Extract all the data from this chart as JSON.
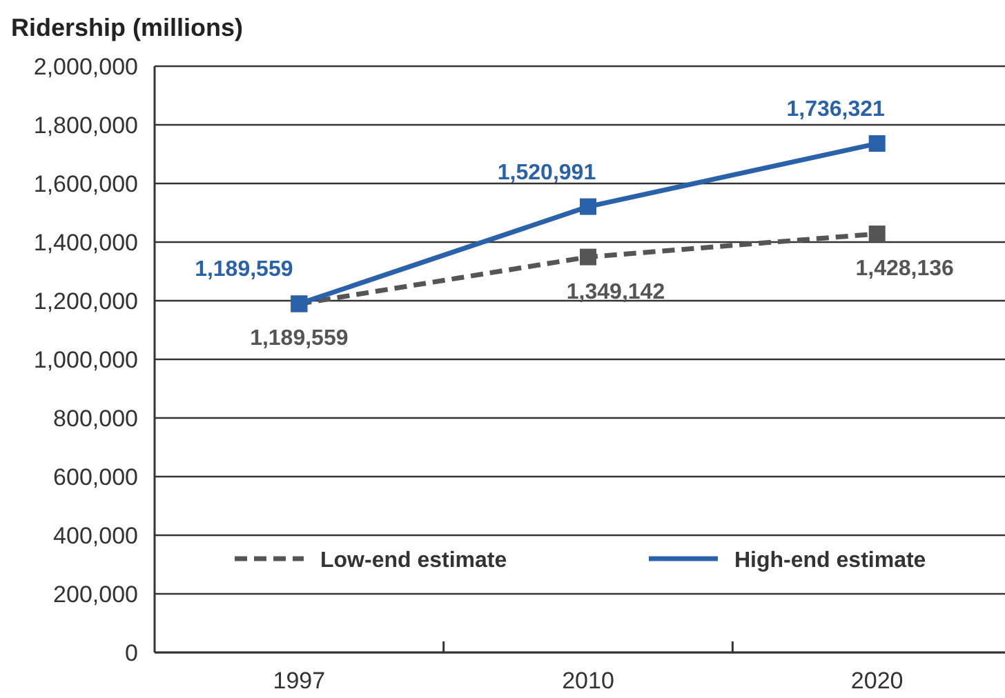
{
  "chart_data": {
    "type": "line",
    "title": "Ridership (millions)",
    "categories": [
      "1997",
      "2010",
      "2020"
    ],
    "series": [
      {
        "name": "Low-end estimate",
        "color": "#555555",
        "values": [
          1189559,
          1349142,
          1428136
        ],
        "value_labels": [
          "1,189,559",
          "1,349,142",
          "1,428,136"
        ],
        "line_style": "dashed"
      },
      {
        "name": "High-end estimate",
        "color": "#2a62aa",
        "values": [
          1189559,
          1520991,
          1736321
        ],
        "value_labels": [
          "1,189,559",
          "1,520,991",
          "1,736,321"
        ],
        "line_style": "solid"
      }
    ],
    "ylim": [
      0,
      2000000
    ],
    "yticks": [
      0,
      {
        "value": 200000,
        "label": "200,000"
      },
      {
        "value": 400000,
        "label": "400,000"
      },
      {
        "value": 600000,
        "label": "600,000"
      },
      {
        "value": 800000,
        "label": "800,000"
      },
      {
        "value": 1000000,
        "label": "1,000,000"
      },
      {
        "value": 1200000,
        "label": "1,200,000"
      },
      {
        "value": 1400000,
        "label": "1,400,000"
      },
      {
        "value": 1600000,
        "label": "1,600,000"
      },
      {
        "value": 1800000,
        "label": "1,800,000"
      },
      {
        "value": 2000000,
        "label": "2,000,000"
      }
    ],
    "grid": "y",
    "legend": "bottom",
    "marker": "square"
  }
}
